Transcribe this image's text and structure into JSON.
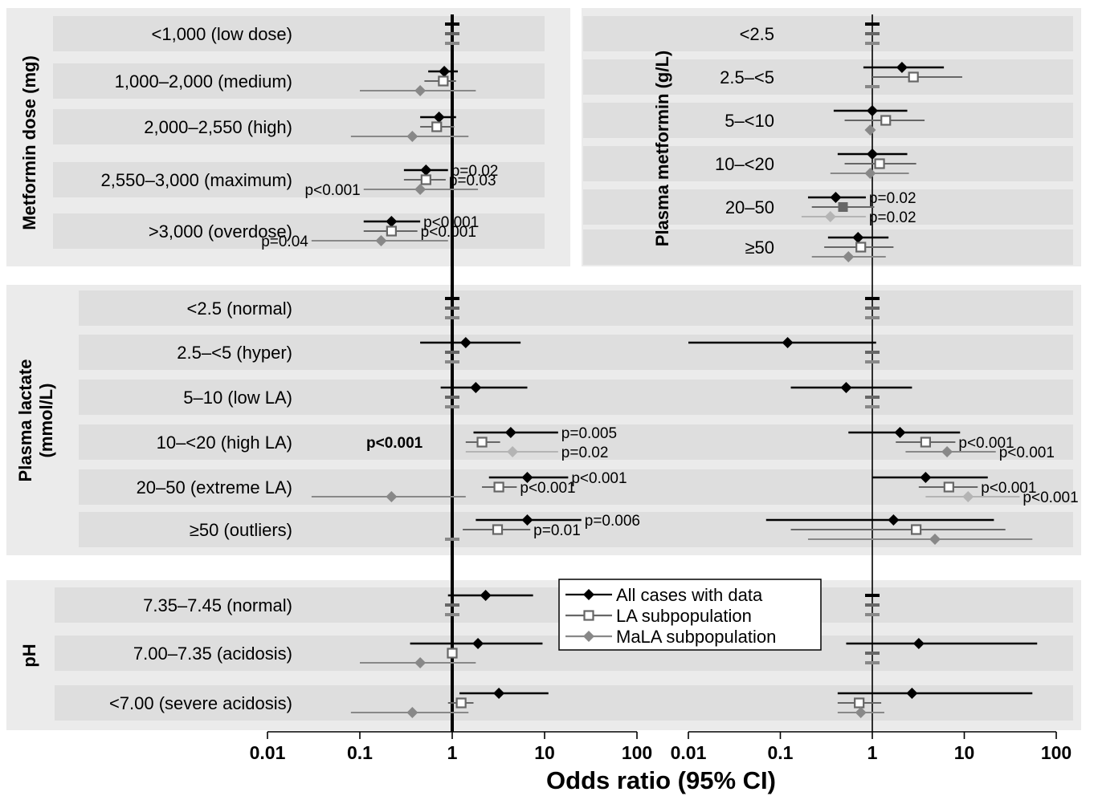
{
  "chart_data": {
    "type": "forest",
    "xlabel": "Odds ratio (95% CI)",
    "x_scale": "log",
    "xlim": [
      0.01,
      100
    ],
    "x_ticks": [
      "0.01",
      "0.1",
      "1",
      "10",
      "100"
    ],
    "legend": {
      "placement": "bottom-center",
      "entries": [
        {
          "label": "All cases with data",
          "series": "all",
          "marker": "filled-diamond",
          "color": "#000000"
        },
        {
          "label": "LA subpopulation",
          "series": "la",
          "marker": "open-square",
          "color": "#666666"
        },
        {
          "label": "MaLA subpopulation",
          "series": "mala",
          "marker": "filled-diamond",
          "color": "#888888"
        }
      ]
    },
    "colors": {
      "all": "#000000",
      "la": "#666666",
      "mala": "#888888",
      "mala_light": "#b4b4b4",
      "band": "#ebebeb",
      "row": "#dedede"
    },
    "sections": [
      {
        "group_label": "Metformin dose (mg)",
        "rows": [
          {
            "label": "<1,000 (low dose)",
            "ref": true
          },
          {
            "label": "1,000–2,000 (medium)",
            "points": [
              {
                "s": "all",
                "or": 0.82,
                "lo": 0.55,
                "hi": 1.15
              },
              {
                "s": "la",
                "or": 0.8,
                "lo": 0.5,
                "hi": 1.1
              },
              {
                "s": "mala",
                "or": 0.45,
                "lo": 0.1,
                "hi": 1.8
              }
            ]
          },
          {
            "label": "2,000–2,550 (high)",
            "points": [
              {
                "s": "all",
                "or": 0.72,
                "lo": 0.45,
                "hi": 1.1
              },
              {
                "s": "la",
                "or": 0.68,
                "lo": 0.45,
                "hi": 1.05
              },
              {
                "s": "mala",
                "or": 0.37,
                "lo": 0.08,
                "hi": 1.5
              }
            ]
          },
          {
            "label": "2,550–3,000 (maximum)",
            "points": [
              {
                "s": "all",
                "or": 0.52,
                "lo": 0.3,
                "hi": 0.9,
                "p": "p=0.02",
                "p_side": "right"
              },
              {
                "s": "la",
                "or": 0.52,
                "lo": 0.3,
                "hi": 0.85,
                "p": "p=0.03",
                "p_side": "right"
              },
              {
                "s": "mala",
                "or": 0.45,
                "lo": 0.11,
                "hi": 1.9,
                "p": "p<0.001",
                "p_side": "left"
              }
            ]
          },
          {
            "label": ">3,000 (overdose)",
            "points": [
              {
                "s": "all",
                "or": 0.22,
                "lo": 0.11,
                "hi": 0.45,
                "p": "p<0.001",
                "p_side": "right"
              },
              {
                "s": "la",
                "or": 0.22,
                "lo": 0.11,
                "hi": 0.42,
                "p": "p<0.001",
                "p_side": "right"
              },
              {
                "s": "mala",
                "or": 0.17,
                "lo": 0.03,
                "hi": 0.9,
                "p": "p=0.04",
                "p_side": "left"
              }
            ]
          }
        ]
      },
      {
        "group_label": "Plasma metformin (g/L)",
        "rows": [
          {
            "label": "<2.5",
            "ref": true
          },
          {
            "label": "2.5–<5",
            "points": [
              {
                "s": "all",
                "or": 2.1,
                "lo": 0.8,
                "hi": 6.0
              },
              {
                "s": "la",
                "or": 2.8,
                "lo": 1.0,
                "hi": 9.5
              },
              {
                "s": "mala",
                "ref": true
              }
            ]
          },
          {
            "label": "5–<10",
            "points": [
              {
                "s": "all",
                "or": 1.0,
                "lo": 0.38,
                "hi": 2.4
              },
              {
                "s": "la",
                "or": 1.4,
                "lo": 0.5,
                "hi": 3.7
              },
              {
                "s": "mala",
                "or": 0.95,
                "lo": 0.9,
                "hi": 1.0
              }
            ]
          },
          {
            "label": "10–<20",
            "points": [
              {
                "s": "all",
                "or": 1.0,
                "lo": 0.42,
                "hi": 2.4
              },
              {
                "s": "la",
                "or": 1.2,
                "lo": 0.5,
                "hi": 3.0
              },
              {
                "s": "mala",
                "or": 0.95,
                "lo": 0.35,
                "hi": 2.5
              }
            ]
          },
          {
            "label": "20–50",
            "points": [
              {
                "s": "all",
                "or": 0.4,
                "lo": 0.2,
                "hi": 0.85,
                "p": "p=0.02",
                "p_side": "right"
              },
              {
                "s": "la",
                "or": 0.48,
                "lo": 0.22,
                "hi": 1.05,
                "filled": true
              },
              {
                "s": "mala",
                "or": 0.35,
                "lo": 0.17,
                "hi": 0.85,
                "p": "p=0.02",
                "p_side": "right",
                "light": true
              }
            ]
          },
          {
            "label": "≥50",
            "points": [
              {
                "s": "all",
                "or": 0.7,
                "lo": 0.33,
                "hi": 1.5
              },
              {
                "s": "la",
                "or": 0.75,
                "lo": 0.3,
                "hi": 1.7
              },
              {
                "s": "mala",
                "or": 0.55,
                "lo": 0.22,
                "hi": 1.4
              }
            ]
          }
        ]
      },
      {
        "group_label": "Plasma lactate\n(mmol/L)",
        "rows": [
          {
            "label": "<2.5 (normal)"
          },
          {
            "label": "2.5–<5 (hyper)"
          },
          {
            "label": "5–10 (low LA)"
          },
          {
            "label": "10–<20 (high LA)"
          },
          {
            "label": "20–50 (extreme LA)"
          },
          {
            "label": "≥50 (outliers)"
          }
        ],
        "panel_note": "p<0.001",
        "panels": [
          [
            {
              "ref": true
            },
            {
              "points": [
                {
                  "s": "all",
                  "or": 1.4,
                  "lo": 0.45,
                  "hi": 5.5
                },
                {
                  "s": "la",
                  "ref": true
                },
                {
                  "s": "mala",
                  "ref": true
                }
              ]
            },
            {
              "points": [
                {
                  "s": "all",
                  "or": 1.8,
                  "lo": 0.75,
                  "hi": 6.5
                },
                {
                  "s": "la",
                  "ref": true
                },
                {
                  "s": "mala",
                  "ref": true
                }
              ]
            },
            {
              "points": [
                {
                  "s": "all",
                  "or": 4.3,
                  "lo": 1.7,
                  "hi": 14,
                  "p": "p=0.005",
                  "p_side": "right"
                },
                {
                  "s": "la",
                  "or": 2.1,
                  "lo": 1.4,
                  "hi": 3.3
                },
                {
                  "s": "mala",
                  "or": 4.5,
                  "lo": 1.4,
                  "hi": 14,
                  "p": "p=0.02",
                  "p_side": "right",
                  "light": true
                }
              ]
            },
            {
              "points": [
                {
                  "s": "all",
                  "or": 6.5,
                  "lo": 2.5,
                  "hi": 18,
                  "p": "p<0.001",
                  "p_side": "right"
                },
                {
                  "s": "la",
                  "or": 3.2,
                  "lo": 2.1,
                  "hi": 5.0,
                  "p": "p<0.001",
                  "p_side": "right"
                },
                {
                  "s": "mala",
                  "or": 0.22,
                  "lo": 0.03,
                  "hi": 1.4
                }
              ]
            },
            {
              "points": [
                {
                  "s": "all",
                  "or": 6.5,
                  "lo": 1.8,
                  "hi": 25,
                  "p": "p=0.006",
                  "p_side": "right"
                },
                {
                  "s": "la",
                  "or": 3.1,
                  "lo": 1.3,
                  "hi": 7.0,
                  "p": "p=0.01",
                  "p_side": "right"
                },
                {
                  "s": "mala",
                  "ref": true
                }
              ]
            }
          ],
          [
            {
              "ref": true
            },
            {
              "points": [
                {
                  "s": "all",
                  "or": 0.12,
                  "lo": 0.01,
                  "hi": 1.1
                },
                {
                  "s": "la",
                  "ref": true
                },
                {
                  "s": "mala",
                  "ref": true
                }
              ]
            },
            {
              "points": [
                {
                  "s": "all",
                  "or": 0.52,
                  "lo": 0.13,
                  "hi": 2.7
                },
                {
                  "s": "la",
                  "ref": true
                },
                {
                  "s": "mala",
                  "ref": true
                }
              ]
            },
            {
              "points": [
                {
                  "s": "all",
                  "or": 2.0,
                  "lo": 0.55,
                  "hi": 9.0
                },
                {
                  "s": "la",
                  "or": 3.8,
                  "lo": 1.8,
                  "hi": 8.0,
                  "p": "p<0.001",
                  "p_side": "right"
                },
                {
                  "s": "mala",
                  "or": 6.5,
                  "lo": 2.3,
                  "hi": 22,
                  "p": "p<0.001",
                  "p_side": "right"
                }
              ]
            },
            {
              "points": [
                {
                  "s": "all",
                  "or": 3.8,
                  "lo": 1.0,
                  "hi": 18
                },
                {
                  "s": "la",
                  "or": 6.8,
                  "lo": 3.2,
                  "hi": 14,
                  "p": "p<0.001",
                  "p_side": "right"
                },
                {
                  "s": "mala",
                  "or": 11,
                  "lo": 3.8,
                  "hi": 40,
                  "p": "p<0.001",
                  "p_side": "right",
                  "light": true
                }
              ]
            },
            {
              "points": [
                {
                  "s": "all",
                  "or": 1.7,
                  "lo": 0.07,
                  "hi": 21
                },
                {
                  "s": "la",
                  "or": 3.0,
                  "lo": 0.13,
                  "hi": 28
                },
                {
                  "s": "mala",
                  "or": 4.8,
                  "lo": 0.2,
                  "hi": 55
                }
              ]
            }
          ]
        ]
      },
      {
        "group_label": "pH",
        "rows": [
          {
            "label": "7.35–7.45 (normal)"
          },
          {
            "label": "7.00–7.35 (acidosis)"
          },
          {
            "label": "<7.00 (severe acidosis)"
          }
        ],
        "panels": [
          [
            {
              "points": [
                {
                  "s": "all",
                  "or": 2.3,
                  "lo": 0.9,
                  "hi": 7.5
                },
                {
                  "s": "la",
                  "ref": true
                },
                {
                  "s": "mala",
                  "ref": true
                }
              ]
            },
            {
              "points": [
                {
                  "s": "all",
                  "or": 1.9,
                  "lo": 0.35,
                  "hi": 9.5
                },
                {
                  "s": "la",
                  "or": 1.0,
                  "lo": 0.98,
                  "hi": 1.02
                },
                {
                  "s": "mala",
                  "or": 0.45,
                  "lo": 0.1,
                  "hi": 1.8
                }
              ]
            },
            {
              "points": [
                {
                  "s": "all",
                  "or": 3.2,
                  "lo": 1.2,
                  "hi": 11
                },
                {
                  "s": "la",
                  "or": 1.25,
                  "lo": 0.9,
                  "hi": 1.7
                },
                {
                  "s": "mala",
                  "or": 0.37,
                  "lo": 0.08,
                  "hi": 1.5
                }
              ]
            }
          ],
          [
            {
              "ref": true
            },
            {
              "points": [
                {
                  "s": "all",
                  "or": 3.2,
                  "lo": 0.52,
                  "hi": 62
                },
                {
                  "s": "la",
                  "ref": true
                },
                {
                  "s": "mala",
                  "ref": true
                }
              ]
            },
            {
              "points": [
                {
                  "s": "all",
                  "or": 2.7,
                  "lo": 0.42,
                  "hi": 55
                },
                {
                  "s": "la",
                  "or": 0.72,
                  "lo": 0.42,
                  "hi": 1.25
                },
                {
                  "s": "mala",
                  "or": 0.75,
                  "lo": 0.42,
                  "hi": 1.35
                }
              ]
            }
          ]
        ]
      }
    ]
  }
}
